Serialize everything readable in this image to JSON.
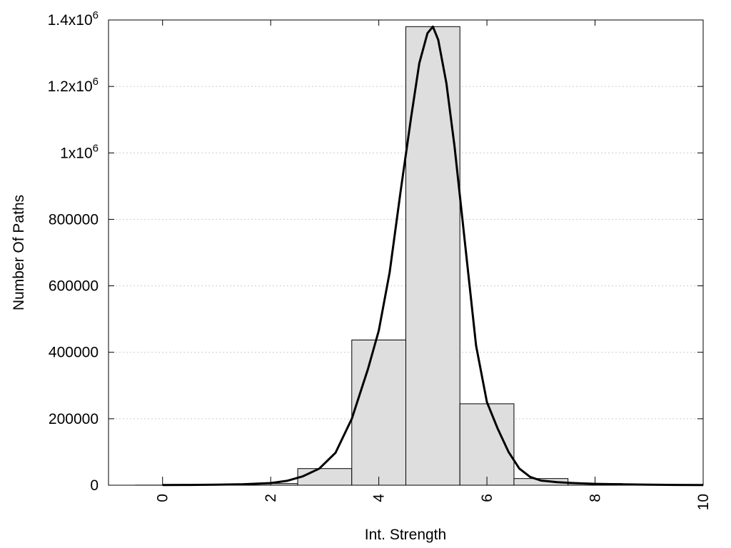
{
  "chart_data": {
    "type": "bar",
    "xlabel": "Int. Strength",
    "ylabel": "Number Of Paths",
    "xlim": [
      -1,
      10
    ],
    "ylim": [
      0,
      1400000
    ],
    "x_ticks": [
      0,
      2,
      4,
      6,
      8,
      10
    ],
    "x_tick_labels": [
      "0",
      "2",
      "4",
      "6",
      "8",
      "10"
    ],
    "y_ticks": [
      {
        "value": 0,
        "label": "0",
        "exp": ""
      },
      {
        "value": 200000,
        "label": "200000",
        "exp": ""
      },
      {
        "value": 400000,
        "label": "400000",
        "exp": ""
      },
      {
        "value": 600000,
        "label": "600000",
        "exp": ""
      },
      {
        "value": 800000,
        "label": "800000",
        "exp": ""
      },
      {
        "value": 1000000,
        "label": "1x10",
        "exp": "6"
      },
      {
        "value": 1200000,
        "label": "1.2x10",
        "exp": "6"
      },
      {
        "value": 1400000,
        "label": "1.4x10",
        "exp": "6"
      }
    ],
    "grid": "horizontal dotted",
    "bars": {
      "width": 1,
      "x": [
        0,
        1,
        2,
        3,
        4,
        5,
        6,
        7,
        8,
        9
      ],
      "values": [
        300,
        1500,
        5000,
        50000,
        437000,
        1380000,
        245000,
        20000,
        5000,
        1500
      ]
    },
    "curve": {
      "x": [
        0,
        0.5,
        1,
        1.5,
        2,
        2.3,
        2.6,
        2.9,
        3.2,
        3.5,
        3.8,
        4.0,
        4.2,
        4.4,
        4.6,
        4.75,
        4.9,
        5.0,
        5.1,
        5.25,
        5.4,
        5.6,
        5.8,
        6.0,
        6.2,
        6.4,
        6.6,
        6.8,
        7.0,
        7.3,
        7.6,
        8.0,
        8.5,
        9.0,
        9.5,
        10
      ],
      "values": [
        500,
        800,
        1500,
        3000,
        6500,
        13000,
        27000,
        50000,
        98000,
        200000,
        350000,
        465000,
        640000,
        880000,
        1110000,
        1270000,
        1360000,
        1380000,
        1340000,
        1210000,
        1020000,
        720000,
        420000,
        250000,
        170000,
        100000,
        50000,
        25000,
        14000,
        9000,
        6500,
        4000,
        2500,
        1500,
        900,
        500
      ]
    },
    "colors": {
      "bar_fill": "#dedede",
      "bar_stroke": "#000000",
      "curve": "#000000",
      "grid": "#cccccc"
    }
  }
}
